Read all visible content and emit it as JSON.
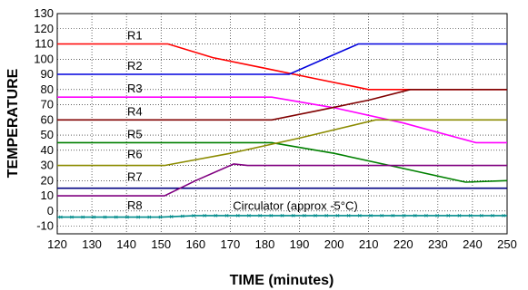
{
  "chart_data": {
    "type": "line",
    "title": "",
    "xlabel": "TIME (minutes)",
    "ylabel": "TEMPERATURE",
    "xlim": [
      120,
      250
    ],
    "ylim": [
      -15,
      130
    ],
    "x_ticks": [
      120,
      130,
      140,
      150,
      160,
      170,
      180,
      190,
      200,
      210,
      220,
      230,
      240,
      250
    ],
    "y_ticks": [
      -10,
      0,
      10,
      20,
      30,
      40,
      50,
      60,
      70,
      80,
      90,
      100,
      110,
      120,
      130
    ],
    "grid": true,
    "legend": "labels placed beside lines",
    "series": [
      {
        "name": "R1",
        "color": "#ff0000",
        "x": [
          120,
          152,
          165,
          180,
          195,
          210,
          250
        ],
        "y": [
          110,
          110,
          101,
          94,
          87,
          80,
          80
        ]
      },
      {
        "name": "R2",
        "color": "#0000dd",
        "x": [
          120,
          187,
          207,
          250
        ],
        "y": [
          90,
          90,
          110,
          110
        ]
      },
      {
        "name": "R3",
        "color": "#ff00ff",
        "x": [
          120,
          182,
          200,
          220,
          241,
          250
        ],
        "y": [
          75,
          75,
          68,
          58,
          45,
          45
        ]
      },
      {
        "name": "R4",
        "color": "#800000",
        "x": [
          120,
          182,
          195,
          210,
          222,
          250
        ],
        "y": [
          60,
          60,
          66,
          73,
          80,
          80
        ]
      },
      {
        "name": "R5",
        "color": "#008000",
        "x": [
          120,
          182,
          200,
          220,
          238,
          250
        ],
        "y": [
          45,
          45,
          38,
          28,
          19,
          20
        ]
      },
      {
        "name": "R6",
        "color": "#8b8b00",
        "x": [
          120,
          151,
          170,
          190,
          212,
          250
        ],
        "y": [
          30,
          30,
          38,
          48,
          60,
          60
        ]
      },
      {
        "name": "R7",
        "color": "#000080",
        "x": [
          120,
          250
        ],
        "y": [
          15,
          15
        ]
      },
      {
        "name": "R8",
        "color": "#800080",
        "x": [
          120,
          151,
          160,
          171,
          175,
          250
        ],
        "y": [
          10,
          10,
          20,
          31,
          30,
          30
        ]
      },
      {
        "name": "Circulator (approx -5°C)",
        "color": "#008b8b",
        "x": [
          120,
          150,
          160,
          250
        ],
        "y": [
          -4,
          -4,
          -3,
          -3
        ]
      }
    ]
  }
}
